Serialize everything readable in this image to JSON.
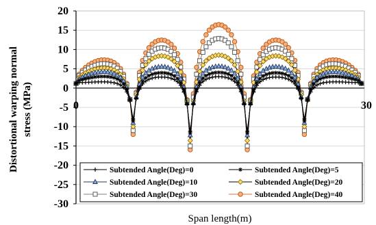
{
  "chart_data": {
    "type": "line",
    "xlabel": "Span length(m)",
    "ylabel_lines": [
      "Distortional warping normal",
      "stress (MPa)"
    ],
    "xlim": [
      0,
      30
    ],
    "ylim": [
      -30,
      20
    ],
    "yticks": [
      20,
      15,
      10,
      5,
      0,
      -5,
      -10,
      -15,
      -20,
      -25,
      -30
    ],
    "xticks": [
      0,
      30
    ],
    "grid": "horizontal",
    "legend_position": "bottom-inside",
    "span_supports": [
      0,
      5.94,
      11.88,
      17.82,
      23.76,
      29.7
    ],
    "series": [
      {
        "name": "Subtended Angle(Deg)=0",
        "marker": "plus",
        "color": "#000000",
        "peaks": [
          1.6,
          2.9,
          3.0,
          2.9,
          1.6
        ],
        "troughs": [
          -8.0,
          -11.2,
          -11.2,
          -8.0
        ]
      },
      {
        "name": "Subtended Angle(Deg)=5",
        "marker": "star",
        "color": "#000000",
        "peaks": [
          3.0,
          4.0,
          4.1,
          4.0,
          3.0
        ],
        "troughs": [
          -8.5,
          -11.6,
          -11.6,
          -8.5
        ]
      },
      {
        "name": "Subtended Angle(Deg)=10",
        "marker": "triangle",
        "color": "#1f3a5f",
        "peaks": [
          4.2,
          5.6,
          5.7,
          5.6,
          4.2
        ],
        "troughs": [
          -9.0,
          -12.2,
          -12.2,
          -9.0
        ]
      },
      {
        "name": "Subtended Angle(Deg)=20",
        "marker": "diamond",
        "color": "#d4a017",
        "peaks": [
          5.2,
          8.4,
          8.6,
          8.4,
          5.2
        ],
        "troughs": [
          -10.0,
          -13.6,
          -13.6,
          -10.0
        ]
      },
      {
        "name": "Subtended Angle(Deg)=30",
        "marker": "square",
        "color": "#808080",
        "peaks": [
          6.3,
          10.5,
          12.9,
          10.5,
          6.3
        ],
        "troughs": [
          -11.0,
          -15.0,
          -15.0,
          -11.0
        ]
      },
      {
        "name": "Subtended Angle(Deg)=40",
        "marker": "circle",
        "color": "#e2732a",
        "peaks": [
          7.3,
          12.5,
          16.5,
          12.5,
          7.3
        ],
        "troughs": [
          -12.0,
          -16.0,
          -16.0,
          -12.0
        ]
      }
    ]
  }
}
